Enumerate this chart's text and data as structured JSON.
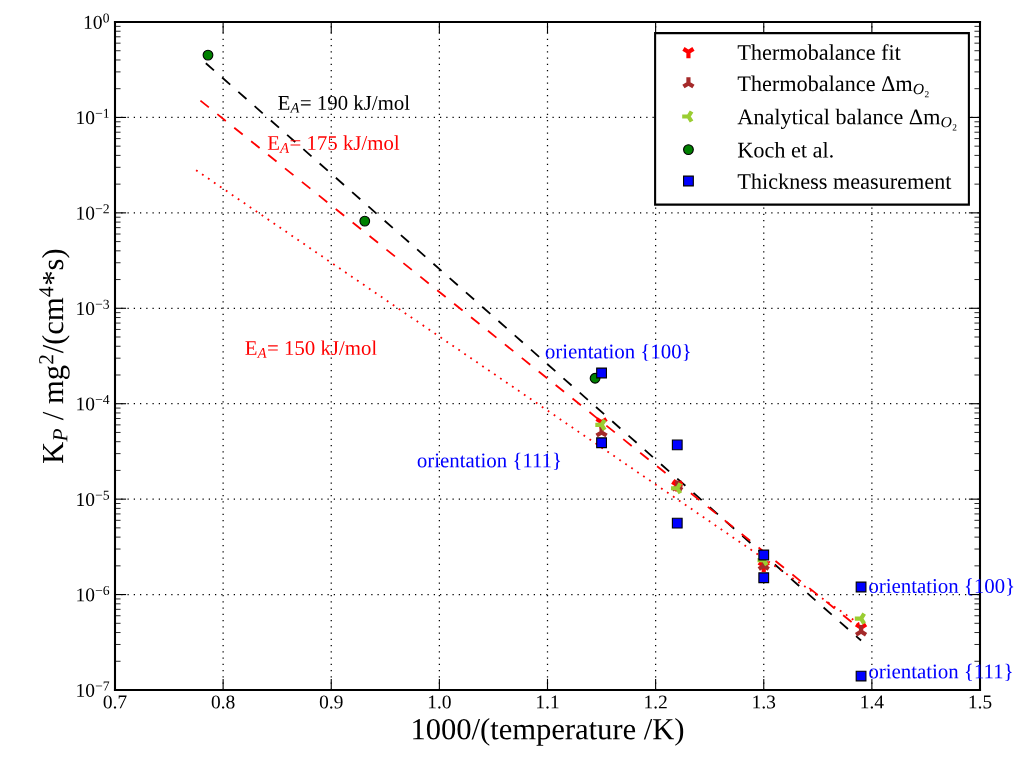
{
  "chart_data": {
    "type": "scatter",
    "xlabel": "1000/(temperature /K)",
    "ylabel": "K$_{P}$ / mg$^{2}$/(cm$^{4}$*s)",
    "log": "y",
    "grid": true,
    "legend": "top right",
    "xlim": [
      0.7,
      1.5
    ],
    "xticks": [
      0.7,
      0.8,
      0.9,
      {
        "value": 1,
        "label": "1.0"
      },
      1.1,
      1.2,
      1.3,
      1.4,
      1.5
    ],
    "ylim": [
      1e-07,
      1
    ],
    "yticks": [
      {
        "value": 1e-07,
        "label": "10$^{−7}$"
      },
      {
        "value": 1e-06,
        "label": "10$^{−6}$"
      },
      {
        "value": 1e-05,
        "label": "10$^{−5}$"
      },
      {
        "value": 0.0001,
        "label": "10$^{−4}$"
      },
      {
        "value": 0.001,
        "label": "10$^{−3}$"
      },
      {
        "value": 0.01,
        "label": "10$^{−2}$"
      },
      {
        "value": 0.1,
        "label": "10$^{−1}$"
      },
      {
        "value": 1,
        "label": "10$^{0}$"
      }
    ],
    "series": [
      {
        "type": "line",
        "line_style": "dashed",
        "color": "#000000",
        "x": [
          0.784,
          1.39
        ],
        "values": [
          0.37,
          3.3e-07
        ]
      },
      {
        "type": "line",
        "line_style": "dashed",
        "color": "#ff0000",
        "x": [
          0.779,
          1.39
        ],
        "values": [
          0.15,
          4.3e-07
        ]
      },
      {
        "type": "line",
        "line_style": "dotted",
        "color": "#ff0000",
        "x": [
          0.775,
          1.39
        ],
        "values": [
          0.028,
          4.8e-07
        ]
      },
      {
        "name": "Thermobalance fit",
        "marker": "cross",
        "color": "#ff0000",
        "x": [
          1.15,
          1.22,
          1.3,
          1.39
        ],
        "values": [
          6.4e-05,
          1.4e-05,
          2e-06,
          4.5e-07
        ]
      },
      {
        "name": "Thermobalance Δm$_{O₂}$",
        "marker": "cross",
        "color": "#a52a2a",
        "x": [
          1.15,
          1.22,
          1.3,
          1.39
        ],
        "values": [
          5e-05,
          1.35e-05,
          2e-06,
          4.1e-07
        ]
      },
      {
        "name": "Analytical balance Δm$_{O₂}$",
        "marker": "cross",
        "color": "#9acd32",
        "x": [
          1.15,
          1.22,
          1.3,
          1.39
        ],
        "values": [
          6e-05,
          1.3e-05,
          2.3e-06,
          5.6e-07
        ]
      },
      {
        "name": "Koch et al.",
        "marker": "circle",
        "color": "#008000",
        "x": [
          0.786,
          0.931,
          1.144
        ],
        "values": [
          0.45,
          0.0082,
          0.000185
        ]
      },
      {
        "name": "Thickness measurement",
        "marker": "square",
        "color": "#0000ff",
        "x": [
          1.15,
          1.15,
          1.22,
          1.22,
          1.3,
          1.3,
          1.39,
          1.39
        ],
        "values": [
          0.00021,
          3.9e-05,
          3.7e-05,
          5.6e-06,
          2.6e-06,
          1.5e-06,
          1.2e-06,
          1.4e-07
        ]
      }
    ],
    "annotations": [
      "E$_{A}$= 190 kJ/mol",
      "E$_{A}$= 175 kJ/mol",
      "E$_{A}$= 150 kJ/mol",
      "orientation {100}",
      "orientation {111}",
      "orientation {100}",
      "orientation {111}"
    ]
  }
}
